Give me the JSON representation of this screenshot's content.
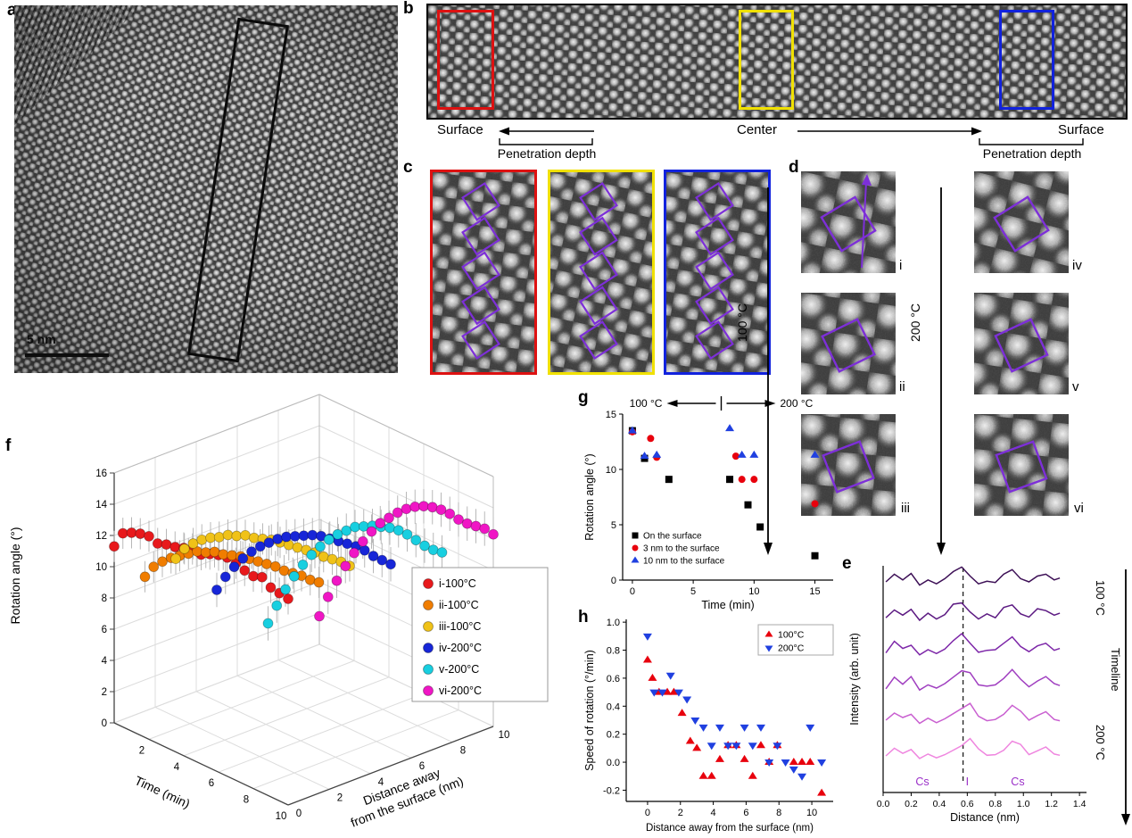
{
  "panels": {
    "a": {
      "label": "a",
      "scale_bar": "5 nm"
    },
    "b": {
      "label": "b",
      "surface_left": "Surface",
      "center_label": "Center",
      "surface_right": "Surface",
      "penetration_left": "Penetration depth",
      "penetration_right": "Penetration depth",
      "roi_colors": {
        "surface_left": "#dd1111",
        "center": "#f0e000",
        "surface_right": "#1122dd"
      }
    },
    "c": {
      "label": "c",
      "roi_colors": [
        "#dd1111",
        "#f0e000",
        "#1122dd"
      ],
      "overlay_color": "#7d2fd8"
    },
    "d": {
      "label": "d",
      "sub_labels": [
        "i",
        "ii",
        "iii",
        "iv",
        "v",
        "vi"
      ],
      "temp_left": "100 °C",
      "temp_right": "200 °C",
      "overlay_color": "#7d2fd8"
    },
    "e": {
      "label": "e",
      "side_top": "100 °C",
      "side_middle": "Timeline",
      "side_bottom": "200 °C"
    },
    "f": {
      "label": "f"
    },
    "g": {
      "label": "g"
    },
    "h": {
      "label": "h"
    }
  },
  "chart_data": [
    {
      "id": "f",
      "type": "scatter3d",
      "xlabel": "Time (min)",
      "ylabel_line1": "Distance away",
      "ylabel_line2": "from the surface (nm)",
      "zlabel": "Rotation angle (°)",
      "xlim": [
        0,
        10
      ],
      "ylim": [
        0,
        10
      ],
      "zlim": [
        0,
        16
      ],
      "xticks": [
        2,
        4,
        6,
        8,
        10
      ],
      "yticks": [
        0,
        2,
        4,
        6,
        8,
        10
      ],
      "zticks": [
        0,
        2,
        4,
        6,
        8,
        10,
        12,
        14,
        16
      ],
      "series": [
        {
          "name": "i-100°C",
          "color": "#e8191c",
          "distance": 0,
          "err": 1.0,
          "time": [
            0,
            0.5,
            1,
            1.5,
            2,
            2.5,
            3,
            3.5,
            4,
            4.5,
            5,
            5.5,
            6,
            6.5,
            7,
            7.5,
            8,
            8.5,
            9,
            9.5,
            10
          ],
          "angle": [
            11.3,
            12.4,
            12.7,
            12.9,
            13.0,
            12.8,
            13.0,
            13.1,
            13.3,
            13.5,
            13.4,
            13.7,
            13.9,
            14.0,
            13.9,
            13.7,
            13.6,
            13.8,
            13.4,
            13.3,
            13.2
          ]
        },
        {
          "name": "ii-100°C",
          "color": "#f07d00",
          "distance": 1.5,
          "err": 1.0,
          "time": [
            0,
            0.5,
            1,
            1.5,
            2,
            2.5,
            3,
            3.5,
            4,
            4.5,
            5,
            5.5,
            6,
            6.5,
            7,
            7.5,
            8,
            8.5,
            9,
            9.5,
            10
          ],
          "angle": [
            8.6,
            9.5,
            10.1,
            10.6,
            11.0,
            11.4,
            11.8,
            12.0,
            12.3,
            12.4,
            12.6,
            12.8,
            12.9,
            13.0,
            13.1,
            13.2,
            13.2,
            13.3,
            13.4,
            13.4,
            13.5
          ]
        },
        {
          "name": "iii-100°C",
          "color": "#f0c218",
          "distance": 3,
          "err": 1.0,
          "time": [
            0,
            0.5,
            1,
            1.5,
            2,
            2.5,
            3,
            3.5,
            4,
            4.5,
            5,
            5.5,
            6,
            6.5,
            7,
            7.5,
            8,
            8.5,
            9,
            9.5,
            10
          ],
          "angle": [
            9.0,
            9.9,
            10.5,
            11.0,
            11.4,
            11.7,
            12.1,
            12.3,
            12.6,
            12.7,
            12.9,
            13.1,
            13.2,
            13.3,
            13.4,
            13.5,
            13.6,
            13.6,
            13.7,
            13.8,
            13.8
          ]
        },
        {
          "name": "iv-200°C",
          "color": "#1726d8",
          "distance": 5,
          "err": 1.1,
          "time": [
            0,
            0.5,
            1,
            1.5,
            2,
            2.5,
            3,
            3.5,
            4,
            4.5,
            5,
            5.5,
            6,
            6.5,
            7,
            7.5,
            8,
            8.5,
            9,
            9.5,
            10
          ],
          "angle": [
            6.0,
            7.1,
            8.0,
            8.8,
            9.5,
            10.1,
            10.6,
            11.1,
            11.5,
            11.8,
            12.1,
            12.4,
            12.6,
            12.7,
            12.8,
            12.9,
            13.0,
            13.0,
            12.9,
            12.9,
            12.9
          ]
        },
        {
          "name": "v-200°C",
          "color": "#18cfe0",
          "distance": 7.5,
          "err": 1.1,
          "time": [
            0,
            0.5,
            1,
            1.5,
            2,
            2.5,
            3,
            3.5,
            4,
            4.5,
            5,
            5.5,
            6,
            6.5,
            7,
            7.5,
            8,
            8.5,
            9,
            9.5,
            10
          ],
          "angle": [
            2.6,
            4.0,
            5.3,
            6.4,
            7.4,
            8.3,
            9.1,
            9.8,
            10.4,
            10.9,
            11.4,
            11.7,
            12.0,
            12.2,
            12.4,
            12.5,
            12.5,
            12.4,
            12.3,
            12.3,
            12.4
          ]
        },
        {
          "name": "vi-200°C",
          "color": "#f016c5",
          "distance": 10,
          "err": 1.1,
          "time": [
            0,
            0.5,
            1,
            1.5,
            2,
            2.5,
            3,
            3.5,
            4,
            4.5,
            5,
            5.5,
            6,
            6.5,
            7,
            7.5,
            8,
            8.5,
            9,
            9.5,
            10
          ],
          "angle": [
            1.8,
            3.3,
            4.6,
            5.8,
            6.9,
            7.9,
            8.8,
            9.6,
            10.2,
            10.8,
            11.3,
            11.7,
            12.0,
            12.2,
            12.3,
            12.3,
            12.2,
            12.2,
            12.3,
            12.4,
            12.3
          ]
        }
      ],
      "legend": [
        "i-100°C",
        "ii-100°C",
        "iii-100°C",
        "iv-200°C",
        "v-200°C",
        "vi-200°C"
      ]
    },
    {
      "id": "g",
      "type": "scatter",
      "header": {
        "left": "100 °C",
        "right": "200 °C"
      },
      "xlabel": "Time (min)",
      "ylabel": "Rotation angle (°)",
      "xlim": [
        -0.8,
        16.5
      ],
      "ylim": [
        0,
        15
      ],
      "xticks": [
        0,
        5,
        10,
        15
      ],
      "yticks": [
        0,
        5,
        10,
        15
      ],
      "divider_time": 7.3,
      "series": [
        {
          "name": "On the surface",
          "marker": "square",
          "color": "#000000",
          "points": [
            [
              0,
              13.5
            ],
            [
              1,
              11.0
            ],
            [
              3,
              9.1
            ],
            [
              8,
              9.1
            ],
            [
              9.5,
              6.8
            ],
            [
              10.5,
              4.8
            ],
            [
              15,
              2.2
            ]
          ]
        },
        {
          "name": "3 nm to the surface",
          "marker": "circle",
          "color": "#e8000d",
          "points": [
            [
              0,
              13.4
            ],
            [
              1.5,
              12.8
            ],
            [
              2,
              11.1
            ],
            [
              8.5,
              11.2
            ],
            [
              9,
              9.1
            ],
            [
              10,
              9.1
            ],
            [
              15,
              6.9
            ]
          ]
        },
        {
          "name": "10 nm to the surface",
          "marker": "triangle-up",
          "color": "#2040e0",
          "points": [
            [
              0,
              13.5
            ],
            [
              1,
              11.2
            ],
            [
              2,
              11.3
            ],
            [
              8,
              13.7
            ],
            [
              9,
              11.3
            ],
            [
              10,
              11.3
            ],
            [
              15,
              11.3
            ]
          ]
        }
      ]
    },
    {
      "id": "h",
      "type": "scatter",
      "xlabel": "Distance away from the surface (nm)",
      "ylabel": "Speed of rotation (°/min)",
      "xlim": [
        -1.3,
        11.3
      ],
      "ylim": [
        -0.28,
        1.02
      ],
      "xticks": [
        0,
        2,
        4,
        6,
        8,
        10
      ],
      "yticks": [
        -0.2,
        0.0,
        0.2,
        0.4,
        0.6,
        0.8,
        1.0
      ],
      "series": [
        {
          "name": "100°C",
          "marker": "triangle-up",
          "color": "#e8000d",
          "points": [
            [
              0,
              0.73
            ],
            [
              0.3,
              0.6
            ],
            [
              0.7,
              0.5
            ],
            [
              1.2,
              0.5
            ],
            [
              1.6,
              0.5
            ],
            [
              2.1,
              0.35
            ],
            [
              2.6,
              0.15
            ],
            [
              3.0,
              0.1
            ],
            [
              3.4,
              -0.1
            ],
            [
              3.9,
              -0.1
            ],
            [
              4.4,
              0.02
            ],
            [
              4.9,
              0.12
            ],
            [
              5.4,
              0.12
            ],
            [
              5.9,
              0.02
            ],
            [
              6.4,
              -0.1
            ],
            [
              6.9,
              0.12
            ],
            [
              7.4,
              0.0
            ],
            [
              7.9,
              0.12
            ],
            [
              8.9,
              0.0
            ],
            [
              9.4,
              0.0
            ],
            [
              9.9,
              0.0
            ],
            [
              10.6,
              -0.22
            ]
          ]
        },
        {
          "name": "200°C",
          "marker": "triangle-down",
          "color": "#2040e0",
          "points": [
            [
              0,
              0.9
            ],
            [
              0.4,
              0.5
            ],
            [
              0.9,
              0.5
            ],
            [
              1.4,
              0.62
            ],
            [
              1.9,
              0.5
            ],
            [
              2.4,
              0.45
            ],
            [
              2.9,
              0.3
            ],
            [
              3.4,
              0.25
            ],
            [
              3.9,
              0.12
            ],
            [
              4.4,
              0.25
            ],
            [
              4.9,
              0.12
            ],
            [
              5.4,
              0.12
            ],
            [
              5.9,
              0.25
            ],
            [
              6.4,
              0.12
            ],
            [
              6.9,
              0.25
            ],
            [
              7.4,
              0.0
            ],
            [
              7.9,
              0.12
            ],
            [
              8.4,
              0.0
            ],
            [
              8.9,
              -0.05
            ],
            [
              9.4,
              -0.1
            ],
            [
              9.9,
              0.25
            ],
            [
              10.6,
              0.0
            ]
          ]
        }
      ]
    },
    {
      "id": "e",
      "type": "line",
      "xlabel": "Distance (nm)",
      "ylabel": "Intensity (arb. unit)",
      "xlim": [
        0,
        1.45
      ],
      "xticks": [
        0.0,
        0.2,
        0.4,
        0.6,
        0.8,
        1.0,
        1.2,
        1.4
      ],
      "dashed_x": 0.57,
      "atom_labels": [
        {
          "text": "Cs",
          "x": 0.28
        },
        {
          "text": "I",
          "x": 0.6
        },
        {
          "text": "Cs",
          "x": 0.96
        }
      ],
      "label_color": "#9b30c8",
      "colors": [
        "#3d1056",
        "#5c1a82",
        "#7d27a8",
        "#a03fc0",
        "#c95fd0",
        "#ef86df"
      ],
      "x": [
        0.02,
        0.08,
        0.14,
        0.2,
        0.26,
        0.32,
        0.38,
        0.44,
        0.5,
        0.56,
        0.62,
        0.68,
        0.74,
        0.8,
        0.86,
        0.92,
        0.98,
        1.04,
        1.1,
        1.16,
        1.22,
        1.26
      ],
      "profiles": [
        [
          0.5,
          0.74,
          0.56,
          0.76,
          0.4,
          0.56,
          0.44,
          0.6,
          0.82,
          0.96,
          0.68,
          0.44,
          0.52,
          0.48,
          0.74,
          0.88,
          0.6,
          0.5,
          0.68,
          0.74,
          0.56,
          0.62
        ],
        [
          0.44,
          0.68,
          0.52,
          0.7,
          0.36,
          0.58,
          0.4,
          0.54,
          0.86,
          0.9,
          0.62,
          0.4,
          0.56,
          0.44,
          0.76,
          0.84,
          0.56,
          0.46,
          0.72,
          0.66,
          0.52,
          0.58
        ],
        [
          0.4,
          0.76,
          0.54,
          0.64,
          0.34,
          0.5,
          0.38,
          0.52,
          0.78,
          1.0,
          0.7,
          0.42,
          0.48,
          0.5,
          0.7,
          0.9,
          0.6,
          0.44,
          0.62,
          0.7,
          0.48,
          0.54
        ],
        [
          0.34,
          0.7,
          0.48,
          0.72,
          0.3,
          0.46,
          0.36,
          0.5,
          0.7,
          0.9,
          0.84,
          0.46,
          0.42,
          0.46,
          0.66,
          0.94,
          0.64,
          0.4,
          0.58,
          0.72,
          0.5,
          0.44
        ],
        [
          0.42,
          0.64,
          0.5,
          0.6,
          0.32,
          0.48,
          0.34,
          0.46,
          0.62,
          0.78,
          0.94,
          0.54,
          0.4,
          0.44,
          0.6,
          0.88,
          0.7,
          0.42,
          0.56,
          0.68,
          0.44,
          0.4
        ],
        [
          0.36,
          0.6,
          0.44,
          0.56,
          0.28,
          0.42,
          0.3,
          0.4,
          0.54,
          0.68,
          0.9,
          0.58,
          0.38,
          0.4,
          0.54,
          0.82,
          0.72,
          0.4,
          0.52,
          0.64,
          0.42,
          0.38
        ]
      ]
    }
  ]
}
